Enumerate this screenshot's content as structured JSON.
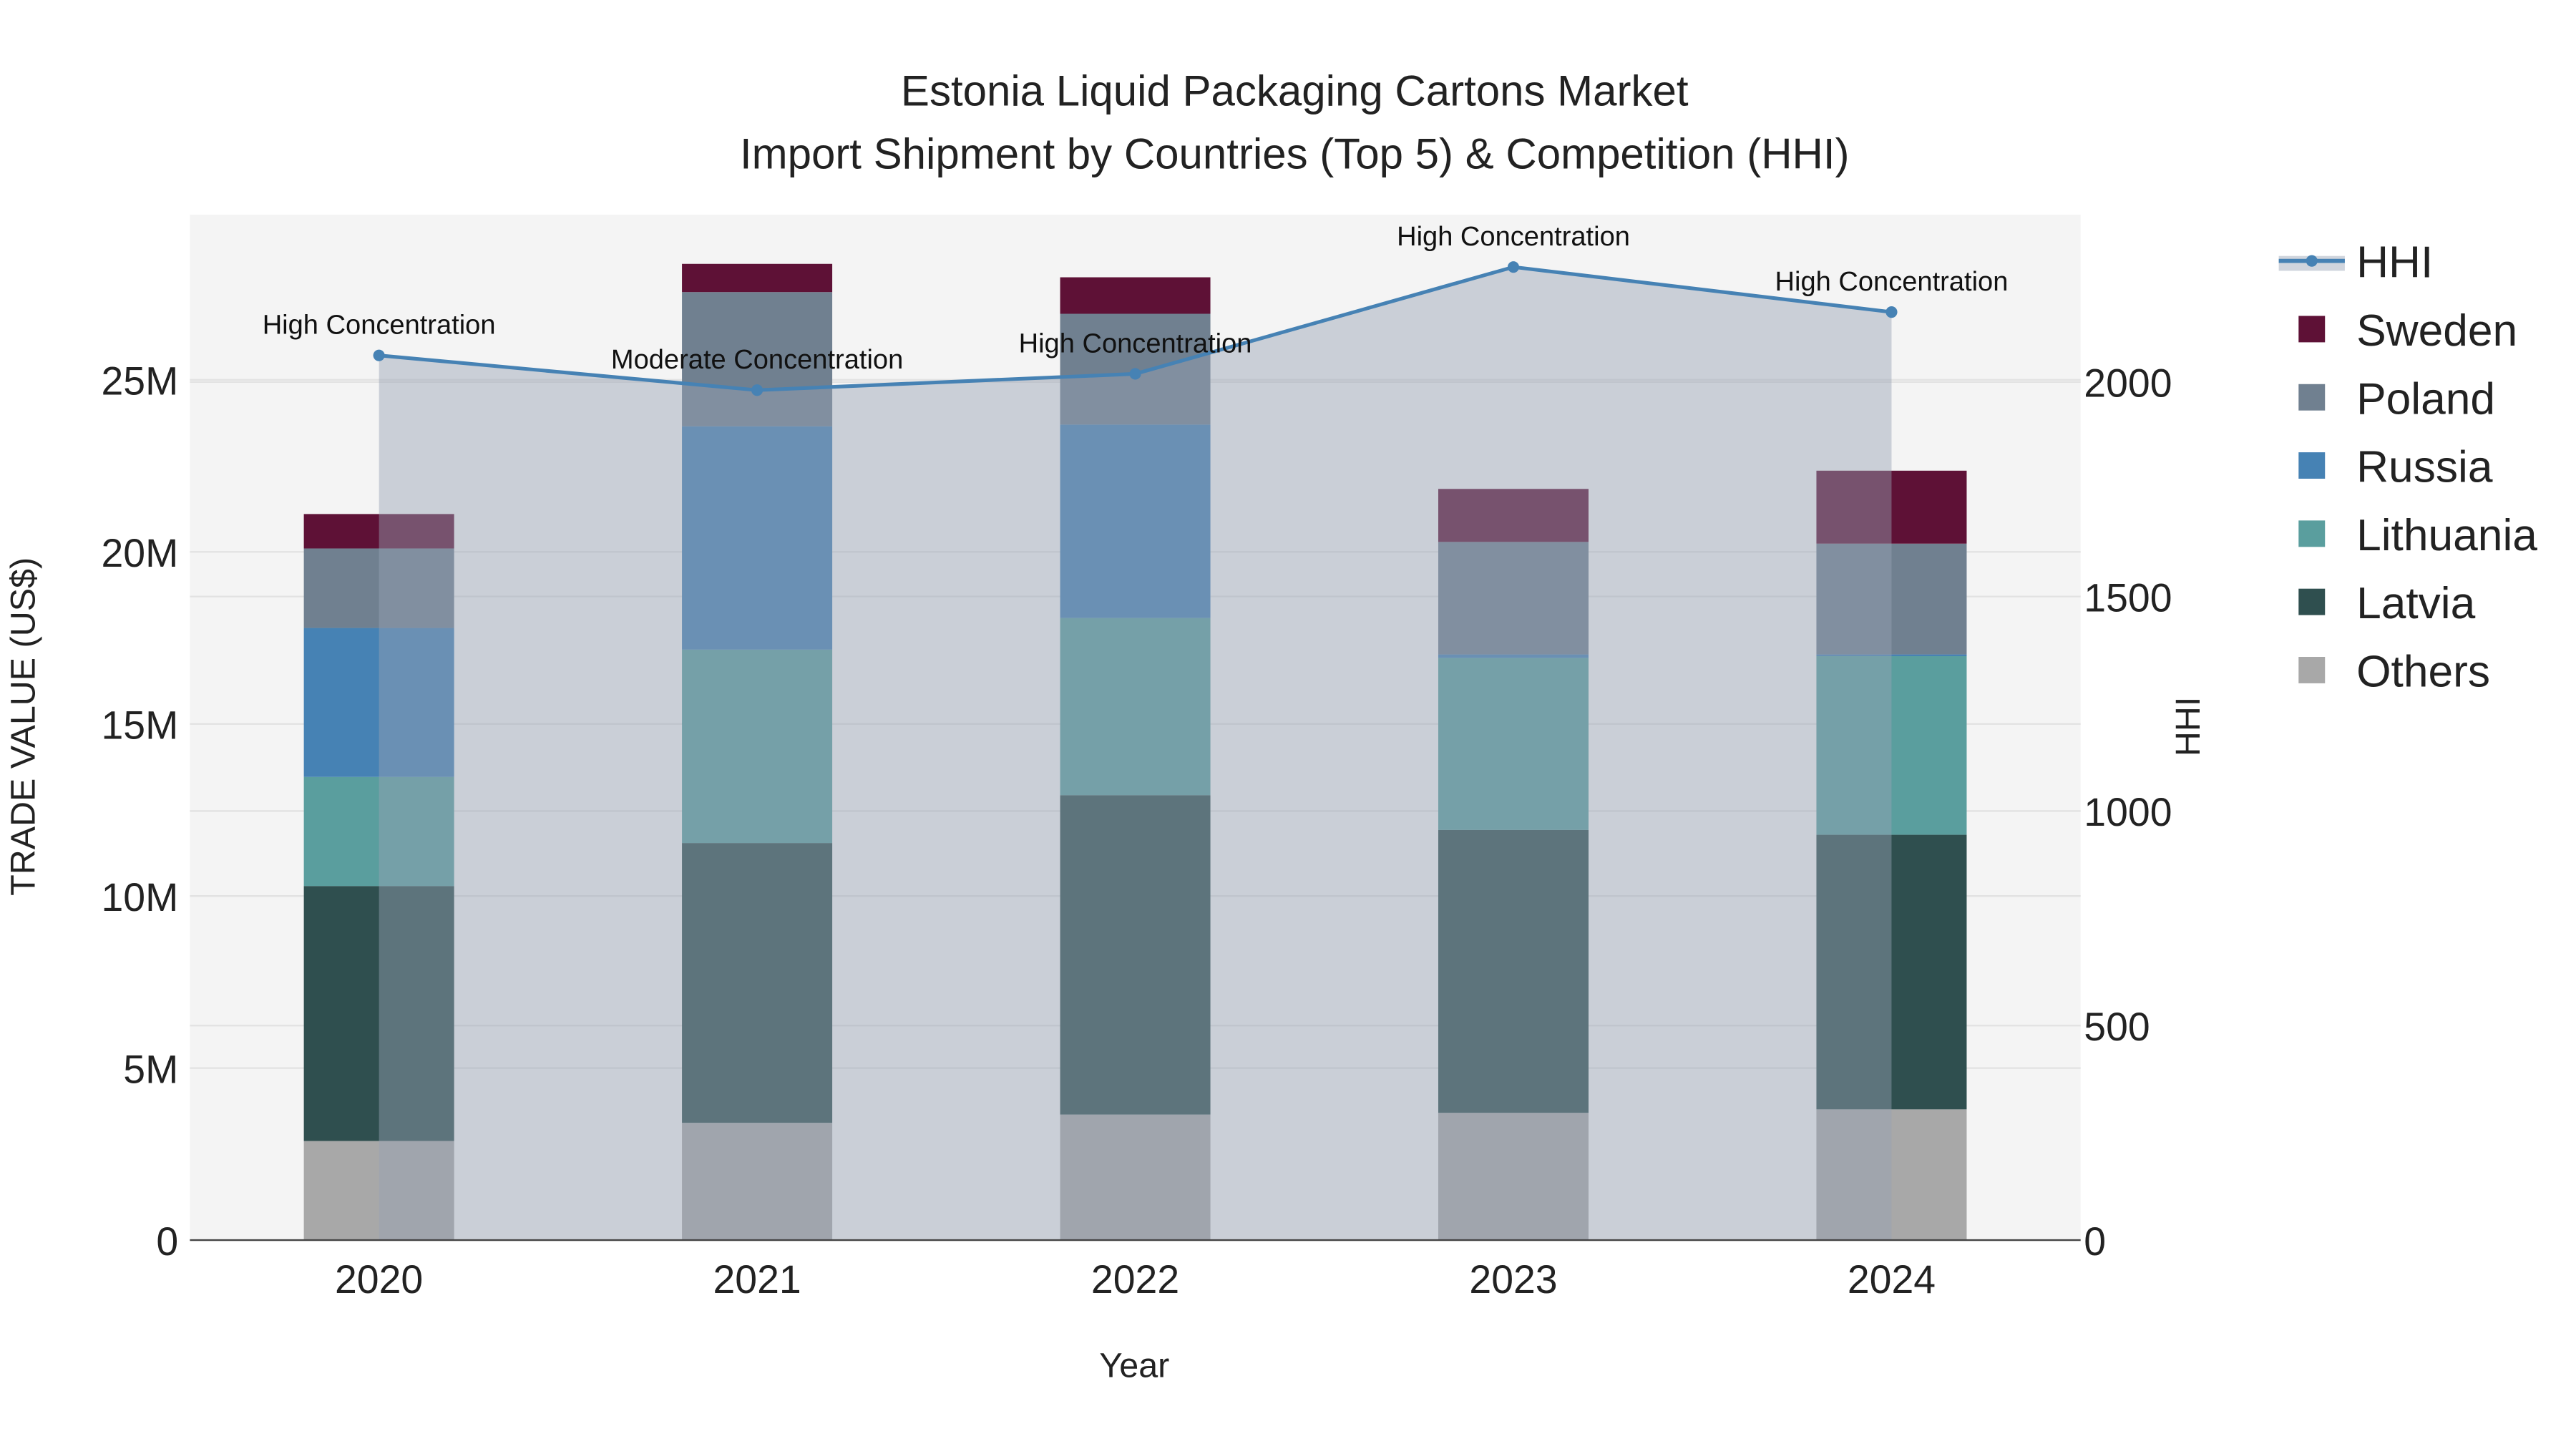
{
  "chart_data": {
    "type": "bar",
    "title_line1": "Estonia Liquid Packaging Cartons Market",
    "title_line2": "Import Shipment by Countries (Top 5) & Competition (HHI)",
    "xlabel": "Year",
    "ylabel": "TRADE VALUE (US$)",
    "y2label": "HHI",
    "categories": [
      "2020",
      "2021",
      "2022",
      "2023",
      "2024"
    ],
    "ylim": [
      0,
      29800000
    ],
    "y2lim": [
      0,
      2390
    ],
    "y_ticks": [
      {
        "v": 0,
        "label": "0"
      },
      {
        "v": 5000000,
        "label": "5M"
      },
      {
        "v": 10000000,
        "label": "10M"
      },
      {
        "v": 15000000,
        "label": "15M"
      },
      {
        "v": 20000000,
        "label": "20M"
      },
      {
        "v": 25000000,
        "label": "25M"
      }
    ],
    "y2_ticks": [
      {
        "v": 0,
        "label": "0"
      },
      {
        "v": 500,
        "label": "500"
      },
      {
        "v": 1000,
        "label": "1000"
      },
      {
        "v": 1500,
        "label": "1500"
      },
      {
        "v": 2000,
        "label": "2000"
      }
    ],
    "stacked": true,
    "series": [
      {
        "name": "Others",
        "color": "#a8a8a8",
        "values": [
          2880000,
          3410000,
          3650000,
          3700000,
          3800000
        ]
      },
      {
        "name": "Latvia",
        "color": "#2f4f4f",
        "values": [
          7410000,
          8130000,
          9280000,
          8220000,
          7980000
        ]
      },
      {
        "name": "Lithuania",
        "color": "#5a9e9e",
        "values": [
          3170000,
          5620000,
          5150000,
          5000000,
          5190000
        ]
      },
      {
        "name": "Russia",
        "color": "#4682b4",
        "values": [
          4330000,
          6490000,
          5620000,
          100000,
          50000
        ]
      },
      {
        "name": "Poland",
        "color": "#708090",
        "values": [
          2310000,
          3900000,
          3220000,
          3270000,
          3220000
        ]
      },
      {
        "name": "Sweden",
        "color": "#5e1136",
        "values": [
          1000000,
          820000,
          1060000,
          1540000,
          2120000
        ]
      }
    ],
    "hhi": {
      "name": "HHI",
      "color": "#4682b4",
      "values": [
        2062,
        1981,
        2019,
        2268,
        2163
      ],
      "annotations": [
        "High Concentration",
        "Moderate Concentration",
        "High Concentration",
        "High Concentration",
        "High Concentration"
      ]
    },
    "legend_order": [
      "HHI",
      "Sweden",
      "Poland",
      "Russia",
      "Lithuania",
      "Latvia",
      "Others"
    ],
    "legend_placement": "right",
    "grid": true
  }
}
